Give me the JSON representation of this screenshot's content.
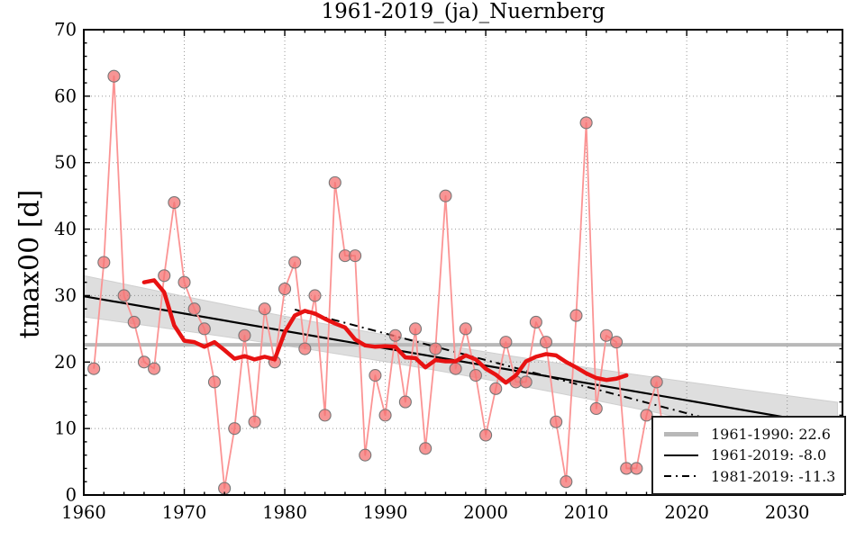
{
  "title": "1961-2019_(ja)_Nuernberg",
  "chart_data": {
    "type": "line",
    "title": "1961-2019_(ja)_Nuernberg",
    "xlabel": "",
    "ylabel": "tmax00 [d]",
    "xlim": [
      1960,
      2035.5
    ],
    "ylim": [
      0,
      70
    ],
    "grid": true,
    "xticks": [
      1960,
      1970,
      1980,
      1990,
      2000,
      2010,
      2020,
      2030
    ],
    "xtick_labels": [
      "1960",
      "1970",
      "1980",
      "1990",
      "2000",
      "2010",
      "2020",
      "2030"
    ],
    "yticks": [
      0,
      10,
      20,
      30,
      40,
      50,
      60,
      70
    ],
    "ytick_labels": [
      "0",
      "10",
      "20",
      "30",
      "40",
      "50",
      "60",
      "70"
    ],
    "minor_tick_step_x": 2,
    "minor_tick_step_y": 2,
    "series": {
      "annual": {
        "name": "annual tmax00 days",
        "start_year": 1961,
        "values": [
          19,
          35,
          63,
          30,
          26,
          20,
          19,
          33,
          44,
          32,
          28,
          25,
          17,
          1,
          10,
          24,
          11,
          28,
          20,
          31,
          35,
          22,
          30,
          12,
          47,
          36,
          36,
          6,
          18,
          12,
          24,
          14,
          25,
          7,
          22,
          45,
          19,
          25,
          18,
          9,
          16,
          23,
          17,
          17,
          26,
          23,
          11,
          2,
          27,
          56,
          13,
          24,
          23,
          4,
          4,
          12,
          17
        ],
        "occluded_tail": {
          "year": 2018.3,
          "value": 2
        }
      },
      "smoothed": {
        "name": "smoothed (running mean)",
        "start_year": 1966,
        "values": [
          32.0,
          32.3,
          30.5,
          25.5,
          23.2,
          23.0,
          22.3,
          23.0,
          21.8,
          20.5,
          20.9,
          20.4,
          20.8,
          20.4,
          24.5,
          27.0,
          27.7,
          27.3,
          26.5,
          25.8,
          25.2,
          23.4,
          22.5,
          22.3,
          22.4,
          22.3,
          20.7,
          20.6,
          19.2,
          20.3,
          20.1,
          20.1,
          21.0,
          20.4,
          19.0,
          18.1,
          16.9,
          18.0,
          20.1,
          20.8,
          21.2,
          21.0,
          20.0,
          19.2,
          18.3,
          17.6,
          17.3,
          17.5,
          18.0
        ]
      },
      "mean_line": {
        "value": 22.6,
        "label": "1961-1990: 22.6"
      },
      "trend_full": {
        "label": "1961-2019: -8.0",
        "points": [
          [
            1960,
            29.9
          ],
          [
            2035.5,
            10.2
          ]
        ]
      },
      "trend_recent": {
        "label": "1981-2019: -11.3",
        "points": [
          [
            1981,
            27.9
          ],
          [
            2035.5,
            6.1
          ]
        ]
      },
      "confidence_band": {
        "center_points": [
          [
            1960,
            29.9
          ],
          [
            2035.5,
            10.2
          ]
        ],
        "half_width_min": 2.0,
        "narrowest_year": 1993,
        "half_width_1960": 3.1,
        "half_width_2035": 3.7
      }
    },
    "legend": {
      "position": "lower right",
      "entries": [
        {
          "label": "1961-1990: 22.6",
          "style": "thick-gray"
        },
        {
          "label": "1961-2019: -8.0",
          "style": "solid-black"
        },
        {
          "label": "1981-2019: -11.3",
          "style": "dashdot-black"
        }
      ]
    }
  },
  "colors": {
    "annual_line": "#fb9494",
    "marker_fill": "#f47272",
    "marker_edge": "#777777",
    "smoothed_line": "#e81212",
    "mean_line": "#b8b8b8",
    "trend_line": "#000000",
    "band_fill": "#888888",
    "grid": "#999999",
    "spine": "#000000"
  }
}
